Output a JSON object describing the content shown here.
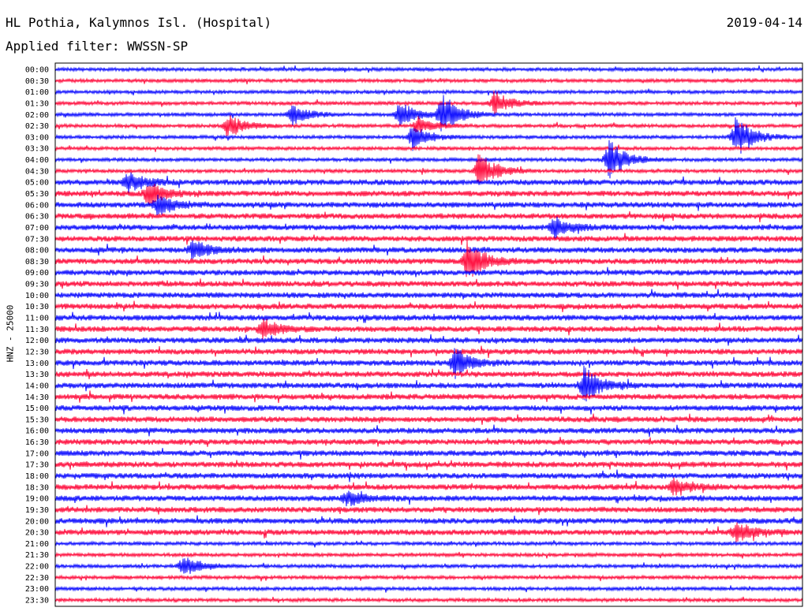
{
  "header": {
    "station": "HL Pothia, Kalymnos Isl. (Hospital)",
    "date": "2019-04-14",
    "filter": "Applied filter: WWSSN-SP"
  },
  "axis": {
    "ylabel": "HNZ - 25000"
  },
  "colors": {
    "trace_a": "#0000ff",
    "trace_b": "#ff0033",
    "frame": "#000000",
    "background": "#ffffff"
  },
  "chart_data": {
    "type": "line",
    "description_type": "helicorder",
    "title": "HL Pothia, Kalymnos Isl. (Hospital)",
    "ylabel": "HNZ - 25000",
    "row_interval_minutes": 30,
    "rows": [
      "00:00",
      "00:30",
      "01:00",
      "01:30",
      "02:00",
      "02:30",
      "03:00",
      "03:30",
      "04:00",
      "04:30",
      "05:00",
      "05:30",
      "06:00",
      "06:30",
      "07:00",
      "07:30",
      "08:00",
      "08:30",
      "09:00",
      "09:30",
      "10:00",
      "10:30",
      "11:00",
      "11:30",
      "12:00",
      "12:30",
      "13:00",
      "13:30",
      "14:00",
      "14:30",
      "15:00",
      "15:30",
      "16:00",
      "16:30",
      "17:00",
      "17:30",
      "18:00",
      "18:30",
      "19:00",
      "19:30",
      "20:00",
      "20:30",
      "21:00",
      "21:30",
      "22:00",
      "22:30",
      "23:00",
      "23:30"
    ],
    "row_colors_cycle": [
      "#0000ff",
      "#ff0033"
    ],
    "events": [
      {
        "row": "02:00",
        "minute": 15.5,
        "strength": 1.0
      },
      {
        "row": "02:00",
        "minute": 13.8,
        "strength": 0.6
      },
      {
        "row": "02:00",
        "minute": 9.5,
        "strength": 0.45
      },
      {
        "row": "01:30",
        "minute": 17.6,
        "strength": 0.55
      },
      {
        "row": "02:30",
        "minute": 6.9,
        "strength": 0.55
      },
      {
        "row": "02:30",
        "minute": 14.5,
        "strength": 0.4
      },
      {
        "row": "03:00",
        "minute": 14.3,
        "strength": 0.55
      },
      {
        "row": "03:00",
        "minute": 27.3,
        "strength": 1.0
      },
      {
        "row": "04:00",
        "minute": 22.2,
        "strength": 0.9
      },
      {
        "row": "04:30",
        "minute": 17.0,
        "strength": 0.85
      },
      {
        "row": "05:00",
        "minute": 2.9,
        "strength": 0.45
      },
      {
        "row": "05:30",
        "minute": 3.7,
        "strength": 0.55
      },
      {
        "row": "06:00",
        "minute": 4.1,
        "strength": 0.45
      },
      {
        "row": "07:00",
        "minute": 20.0,
        "strength": 0.45
      },
      {
        "row": "08:00",
        "minute": 5.5,
        "strength": 0.4
      },
      {
        "row": "08:30",
        "minute": 16.5,
        "strength": 0.9
      },
      {
        "row": "11:30",
        "minute": 8.3,
        "strength": 0.4
      },
      {
        "row": "13:00",
        "minute": 16.0,
        "strength": 0.7
      },
      {
        "row": "14:00",
        "minute": 21.2,
        "strength": 0.85
      },
      {
        "row": "18:30",
        "minute": 24.8,
        "strength": 0.45
      },
      {
        "row": "19:00",
        "minute": 11.7,
        "strength": 0.35
      },
      {
        "row": "20:30",
        "minute": 27.3,
        "strength": 0.45
      },
      {
        "row": "22:00",
        "minute": 5.1,
        "strength": 0.5
      }
    ]
  }
}
